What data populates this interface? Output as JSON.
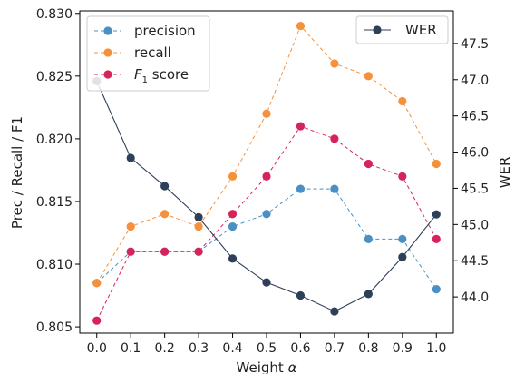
{
  "chart_data": {
    "type": "line",
    "xlabel": "Weight α",
    "ylabel_left": "Prec / Recall / F1",
    "ylabel_right": "WER",
    "x": [
      0.0,
      0.1,
      0.2,
      0.3,
      0.4,
      0.5,
      0.6,
      0.7,
      0.8,
      0.9,
      1.0
    ],
    "x_tick_labels": [
      "0.0",
      "0.1",
      "0.2",
      "0.3",
      "0.4",
      "0.5",
      "0.6",
      "0.7",
      "0.8",
      "0.9",
      "1.0"
    ],
    "xlim": [
      -0.05,
      1.05
    ],
    "ylim_left": [
      0.8045,
      0.8302
    ],
    "yticks_left": [
      "0.805",
      "0.810",
      "0.815",
      "0.820",
      "0.825",
      "0.830"
    ],
    "ylim_right": [
      43.5,
      47.95
    ],
    "yticks_right": [
      "44.0",
      "44.5",
      "45.0",
      "45.5",
      "46.0",
      "46.5",
      "47.0",
      "47.5"
    ],
    "grid": false,
    "series_left": [
      {
        "name": "precision",
        "color": "#4a90c4",
        "values": [
          0.8085,
          0.811,
          0.811,
          0.811,
          0.813,
          0.814,
          0.816,
          0.816,
          0.812,
          0.812,
          0.808
        ]
      },
      {
        "name": "recall",
        "color": "#f5913a",
        "values": [
          0.8085,
          0.813,
          0.814,
          0.813,
          0.817,
          0.822,
          0.829,
          0.826,
          0.825,
          0.823,
          0.818
        ]
      },
      {
        "name": "F1 score",
        "color": "#d6245a",
        "values": [
          0.8055,
          0.811,
          0.811,
          0.811,
          0.814,
          0.817,
          0.821,
          0.82,
          0.818,
          0.817,
          0.812
        ]
      }
    ],
    "series_right": [
      {
        "name": "WER",
        "color": "#2e3f5a",
        "values": [
          46.98,
          45.92,
          45.53,
          45.1,
          44.53,
          44.2,
          44.02,
          43.8,
          44.04,
          44.55,
          45.14
        ]
      }
    ],
    "legend_left": {
      "placement": "upper-left",
      "entries": [
        {
          "label": "precision",
          "color": "#4a90c4",
          "style": "dashed"
        },
        {
          "label": "recall",
          "color": "#f5913a",
          "style": "dashed"
        },
        {
          "label_main": "F",
          "label_sub": "1",
          "label_rest": " score",
          "color": "#d6245a",
          "style": "dashed"
        }
      ]
    },
    "legend_right": {
      "placement": "upper-right",
      "entries": [
        {
          "label": "WER",
          "color": "#2e3f5a",
          "style": "solid"
        }
      ]
    }
  }
}
